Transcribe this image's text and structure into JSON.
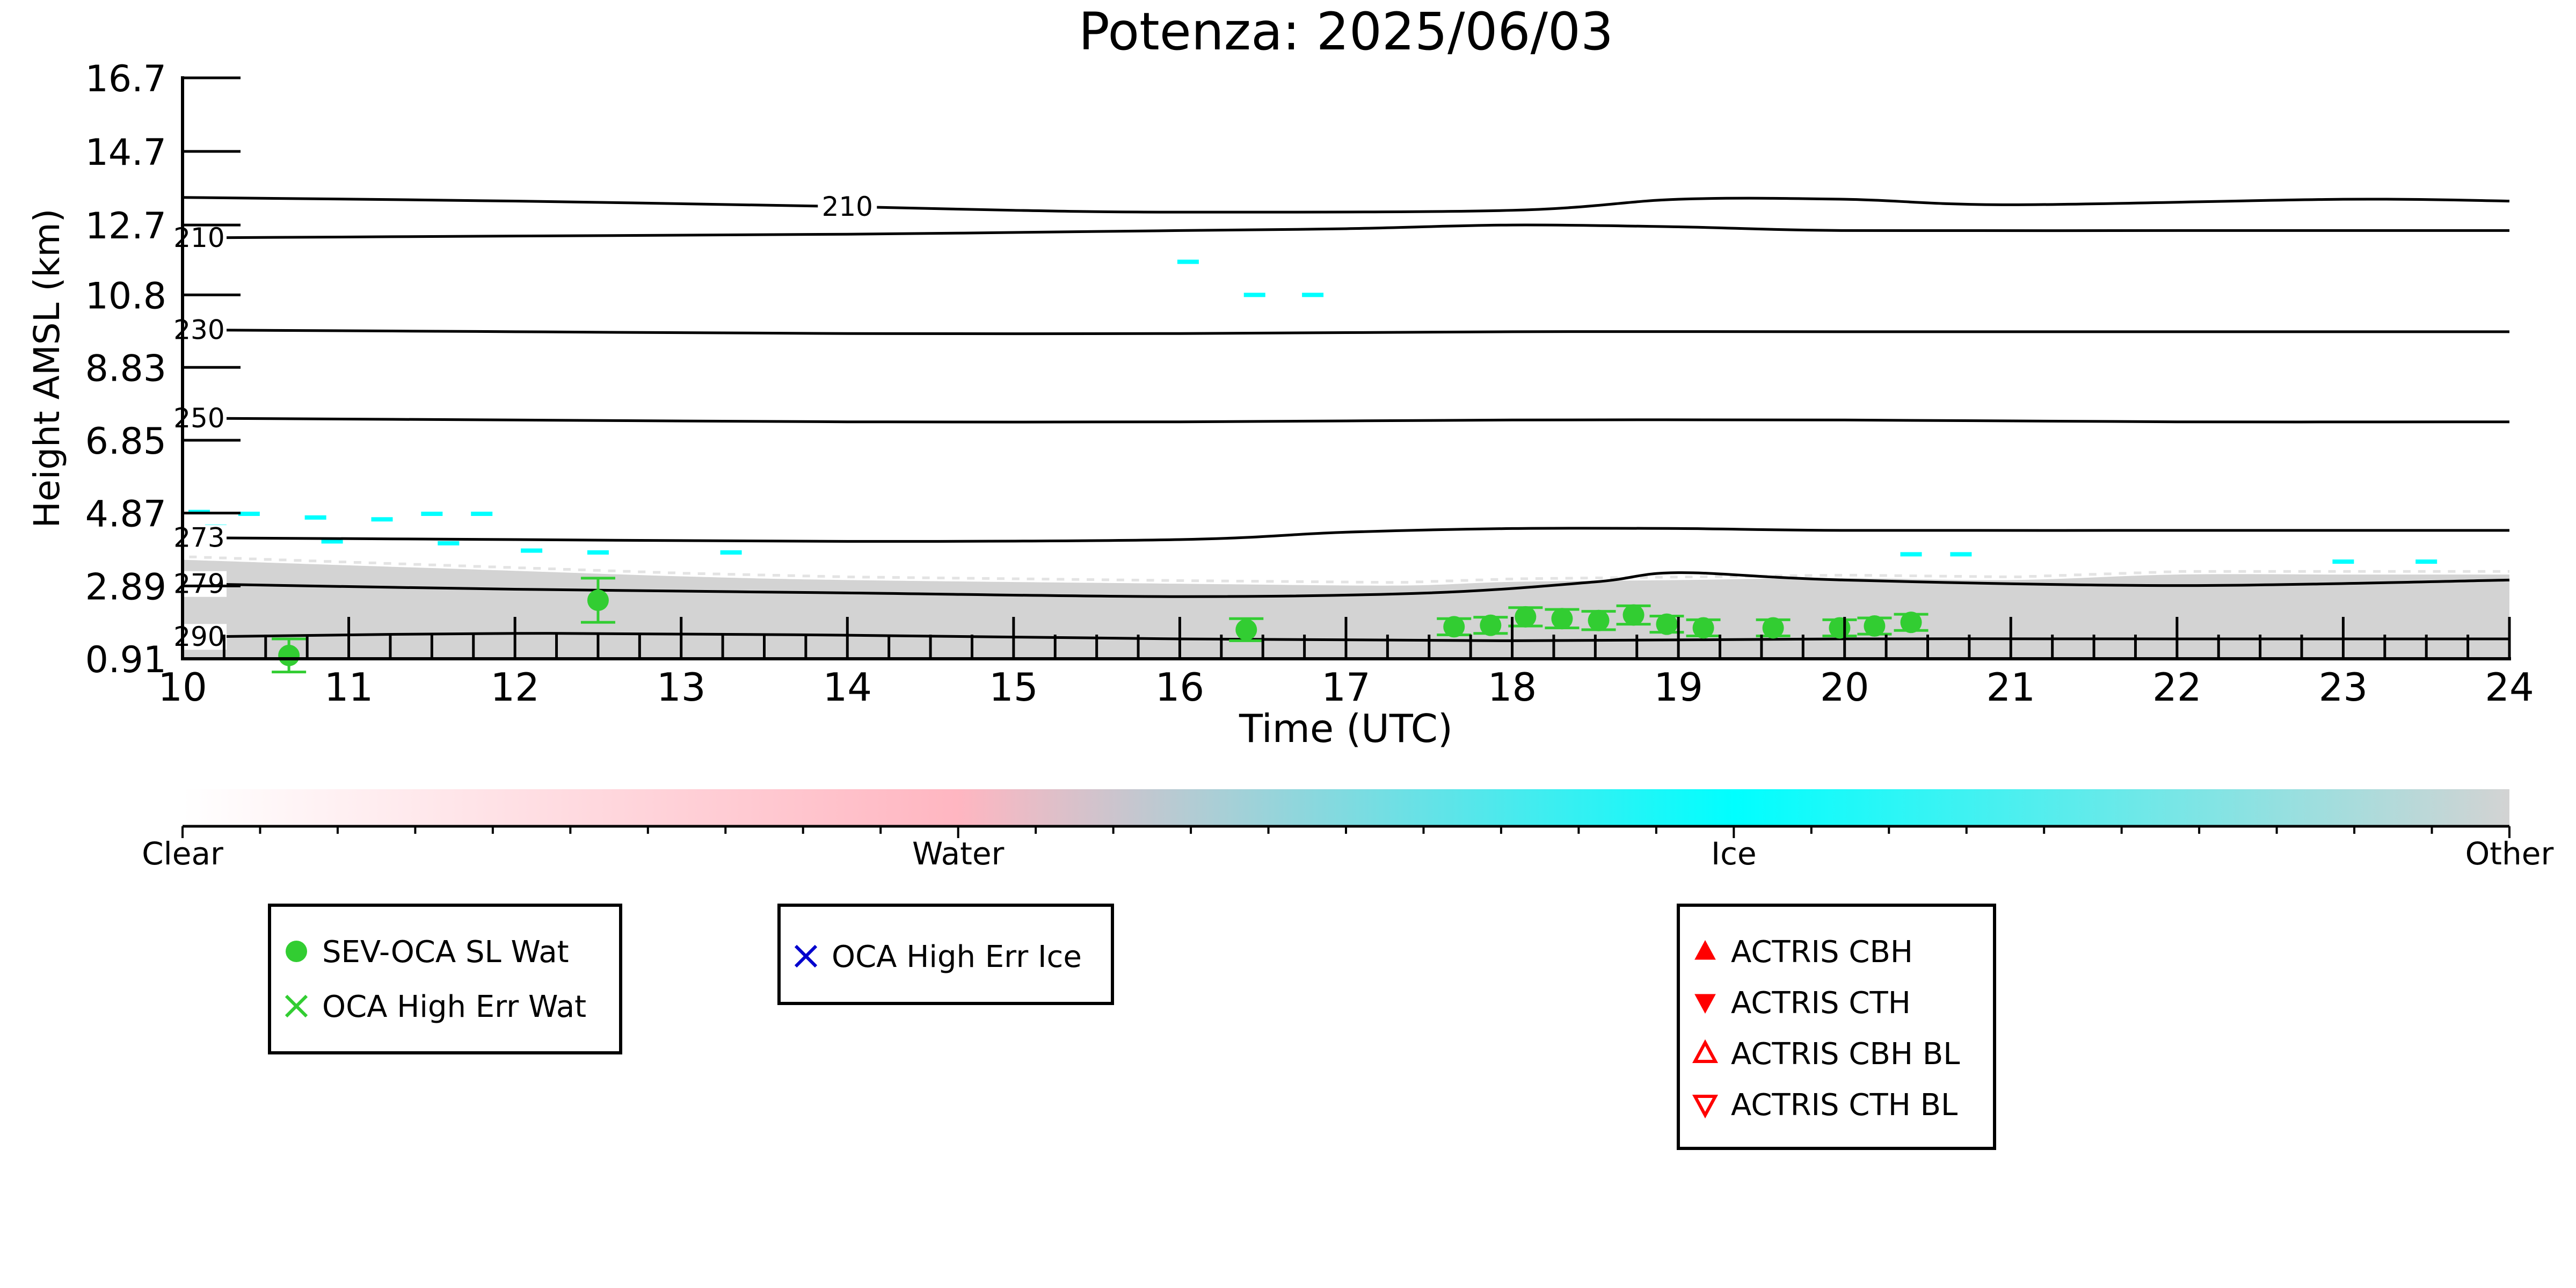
{
  "chart_data": {
    "type": "scatter",
    "title": "Potenza: 2025/06/03",
    "xlabel": "Time (UTC)",
    "ylabel": "Height AMSL (km)",
    "xlim": [
      10,
      24
    ],
    "ylim": [
      0.91,
      16.7
    ],
    "x_ticks": [
      "10",
      "11",
      "12",
      "13",
      "14",
      "15",
      "16",
      "17",
      "18",
      "19",
      "20",
      "21",
      "22",
      "23",
      "24"
    ],
    "y_ticks": [
      {
        "value": 0.91,
        "label": "0.91"
      },
      {
        "value": 2.89,
        "label": "2.89"
      },
      {
        "value": 4.87,
        "label": "4.87"
      },
      {
        "value": 6.85,
        "label": "6.85"
      },
      {
        "value": 8.83,
        "label": "8.83"
      },
      {
        "value": 10.8,
        "label": "10.8"
      },
      {
        "value": 12.7,
        "label": "12.7"
      },
      {
        "value": 14.7,
        "label": "14.7"
      },
      {
        "value": 16.7,
        "label": "16.7"
      }
    ],
    "contours": [
      {
        "label": "290",
        "label_x": 10.1,
        "points": [
          [
            10,
            1.5
          ],
          [
            12,
            1.6
          ],
          [
            14,
            1.55
          ],
          [
            16,
            1.45
          ],
          [
            18,
            1.4
          ],
          [
            20,
            1.45
          ],
          [
            22,
            1.45
          ],
          [
            24,
            1.45
          ]
        ]
      },
      {
        "label": "279",
        "label_x": 10.1,
        "points": [
          [
            10,
            2.95
          ],
          [
            12,
            2.8
          ],
          [
            14,
            2.7
          ],
          [
            16,
            2.6
          ],
          [
            17.5,
            2.7
          ],
          [
            18.5,
            3.0
          ],
          [
            19,
            3.25
          ],
          [
            20,
            3.05
          ],
          [
            22,
            2.9
          ],
          [
            24,
            3.05
          ]
        ]
      },
      {
        "label": "273",
        "label_x": 10.1,
        "points": [
          [
            10,
            4.2
          ],
          [
            12,
            4.15
          ],
          [
            14,
            4.1
          ],
          [
            16,
            4.15
          ],
          [
            17,
            4.35
          ],
          [
            18,
            4.45
          ],
          [
            19,
            4.45
          ],
          [
            20,
            4.4
          ],
          [
            22,
            4.4
          ],
          [
            24,
            4.4
          ]
        ]
      },
      {
        "label": "250",
        "label_x": 10.1,
        "points": [
          [
            10,
            7.45
          ],
          [
            12,
            7.4
          ],
          [
            14,
            7.35
          ],
          [
            16,
            7.35
          ],
          [
            18,
            7.4
          ],
          [
            20,
            7.4
          ],
          [
            22,
            7.35
          ],
          [
            24,
            7.35
          ]
        ]
      },
      {
        "label": "230",
        "label_x": 10.1,
        "points": [
          [
            10,
            9.85
          ],
          [
            12,
            9.8
          ],
          [
            14,
            9.75
          ],
          [
            16,
            9.75
          ],
          [
            18,
            9.8
          ],
          [
            20,
            9.8
          ],
          [
            22,
            9.8
          ],
          [
            24,
            9.8
          ]
        ]
      },
      {
        "label": "210",
        "label_x": 10.1,
        "points": [
          [
            10,
            12.35
          ],
          [
            12,
            12.4
          ],
          [
            14,
            12.45
          ],
          [
            16,
            12.55
          ],
          [
            17,
            12.6
          ],
          [
            18,
            12.7
          ],
          [
            19,
            12.65
          ],
          [
            20,
            12.55
          ],
          [
            22,
            12.55
          ],
          [
            24,
            12.55
          ]
        ]
      },
      {
        "label": "210",
        "label_x": 14.0,
        "points": [
          [
            10,
            13.45
          ],
          [
            12,
            13.35
          ],
          [
            14,
            13.2
          ],
          [
            15,
            13.1
          ],
          [
            16,
            13.05
          ],
          [
            18,
            13.1
          ],
          [
            19,
            13.4
          ],
          [
            20,
            13.4
          ],
          [
            21,
            13.25
          ],
          [
            23,
            13.4
          ],
          [
            24,
            13.35
          ]
        ]
      }
    ],
    "cloud_base_layer": {
      "color": "#d3d3d3",
      "top": [
        [
          10,
          3.6
        ],
        [
          12,
          3.3
        ],
        [
          13,
          3.15
        ],
        [
          14,
          3.05
        ],
        [
          16,
          2.95
        ],
        [
          17.3,
          2.9
        ],
        [
          18,
          3.0
        ],
        [
          19,
          3.05
        ],
        [
          20,
          3.1
        ],
        [
          21,
          3.05
        ],
        [
          22,
          3.2
        ],
        [
          23,
          3.2
        ],
        [
          24,
          3.2
        ]
      ]
    },
    "ice_specks": {
      "color": "#00ffff",
      "points": [
        [
          10.1,
          4.9
        ],
        [
          10.2,
          4.5
        ],
        [
          10.4,
          4.85
        ],
        [
          10.8,
          4.75
        ],
        [
          10.9,
          4.1
        ],
        [
          11.2,
          4.7
        ],
        [
          11.5,
          4.85
        ],
        [
          11.8,
          4.85
        ],
        [
          11.6,
          4.05
        ],
        [
          12.1,
          3.85
        ],
        [
          12.5,
          3.8
        ],
        [
          13.3,
          3.8
        ],
        [
          16.05,
          11.7
        ],
        [
          16.45,
          10.8
        ],
        [
          16.8,
          10.8
        ],
        [
          20.4,
          3.75
        ],
        [
          20.7,
          3.75
        ],
        [
          23.0,
          3.55
        ],
        [
          23.5,
          3.55
        ]
      ]
    },
    "series": [
      {
        "name": "SEV-OCA SL Wat",
        "color": "#32cd32",
        "marker": "circle",
        "points": [
          {
            "x": 10.64,
            "y": 1.0,
            "err": 0.45
          },
          {
            "x": 12.5,
            "y": 2.5,
            "err": 0.6
          },
          {
            "x": 16.4,
            "y": 1.7,
            "err": 0.3
          },
          {
            "x": 17.65,
            "y": 1.78,
            "err": 0.22
          },
          {
            "x": 17.87,
            "y": 1.82,
            "err": 0.22
          },
          {
            "x": 18.08,
            "y": 2.05,
            "err": 0.25
          },
          {
            "x": 18.3,
            "y": 2.0,
            "err": 0.25
          },
          {
            "x": 18.52,
            "y": 1.95,
            "err": 0.25
          },
          {
            "x": 18.73,
            "y": 2.1,
            "err": 0.25
          },
          {
            "x": 18.93,
            "y": 1.85,
            "err": 0.22
          },
          {
            "x": 19.15,
            "y": 1.75,
            "err": 0.22
          },
          {
            "x": 19.57,
            "y": 1.75,
            "err": 0.22
          },
          {
            "x": 19.97,
            "y": 1.75,
            "err": 0.22
          },
          {
            "x": 20.18,
            "y": 1.8,
            "err": 0.22
          },
          {
            "x": 20.4,
            "y": 1.9,
            "err": 0.22
          }
        ]
      }
    ],
    "colorbar": {
      "labels": [
        "Clear",
        "Water",
        "Ice",
        "Other"
      ],
      "colors": [
        "#ffffff",
        "#ffb6c1",
        "#00ffff",
        "#d3d3d3"
      ]
    },
    "legend_boxes": [
      {
        "entries": [
          {
            "label": "SEV-OCA SL Wat",
            "marker": "circle",
            "color": "#32cd32"
          },
          {
            "label": "OCA High Err Wat",
            "marker": "x",
            "color": "#32cd32"
          }
        ]
      },
      {
        "entries": [
          {
            "label": "OCA High Err Ice",
            "marker": "x",
            "color": "#0000cd"
          }
        ]
      },
      {
        "entries": [
          {
            "label": "ACTRIS CBH",
            "marker": "triangle-up",
            "color": "#ff0000"
          },
          {
            "label": "ACTRIS CTH",
            "marker": "triangle-down",
            "color": "#ff0000"
          },
          {
            "label": "ACTRIS CBH BL",
            "marker": "triangle-up-open",
            "color": "#ff0000"
          },
          {
            "label": "ACTRIS CTH BL",
            "marker": "triangle-down-open",
            "color": "#ff0000"
          }
        ]
      }
    ]
  }
}
